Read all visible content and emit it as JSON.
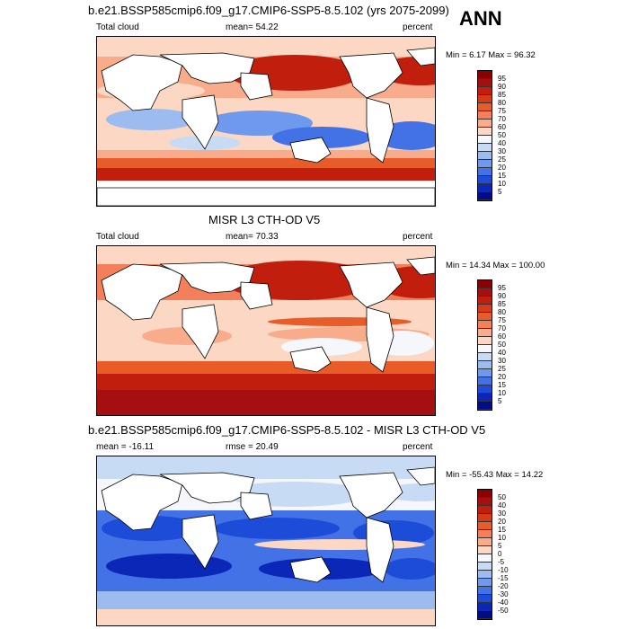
{
  "season": "ANN",
  "panels": [
    {
      "title": "b.e21.BSSP585cmip6.f09_g17.CMIP6-SSP5-8.5.102 (yrs 2075-2099)",
      "left_label": "Total cloud",
      "center_label": "mean=  54.22",
      "right_label": "percent",
      "minmax": "Min =   6.17 Max =  96.32",
      "colorbar": {
        "labels": [
          "95",
          "90",
          "85",
          "80",
          "75",
          "70",
          "60",
          "50",
          "40",
          "30",
          "25",
          "20",
          "15",
          "10",
          "5"
        ],
        "colors": [
          "#8b0000",
          "#a50f0f",
          "#c21e0e",
          "#d63a16",
          "#e85c2a",
          "#f3805a",
          "#f9ac8c",
          "#fcd8c4",
          "#f5f7fa",
          "#c8dbf5",
          "#9cbcf0",
          "#6f99ec",
          "#4272e6",
          "#1c4cd8",
          "#0a27b8",
          "#000c88"
        ]
      }
    },
    {
      "title": "MISR L3 CTH-OD V5",
      "left_label": "Total cloud",
      "center_label": "mean=  70.33",
      "right_label": "percent",
      "minmax": "Min =  14.34 Max = 100.00",
      "colorbar": {
        "labels": [
          "95",
          "90",
          "85",
          "80",
          "75",
          "70",
          "60",
          "50",
          "40",
          "30",
          "25",
          "20",
          "15",
          "10",
          "5"
        ],
        "colors": [
          "#8b0000",
          "#a50f0f",
          "#c21e0e",
          "#d63a16",
          "#e85c2a",
          "#f3805a",
          "#f9ac8c",
          "#fcd8c4",
          "#f5f7fa",
          "#c8dbf5",
          "#9cbcf0",
          "#6f99ec",
          "#4272e6",
          "#1c4cd8",
          "#0a27b8",
          "#000c88"
        ]
      }
    },
    {
      "title": "b.e21.BSSP585cmip6.f09_g17.CMIP6-SSP5-8.5.102 - MISR L3 CTH-OD V5",
      "left_label": "mean = -16.11",
      "center_label": "rmse =  20.49",
      "right_label": "percent",
      "minmax": "Min = -55.43 Max =  14.22",
      "colorbar": {
        "labels": [
          "50",
          "40",
          "30",
          "20",
          "15",
          "10",
          "5",
          "0",
          "-5",
          "-10",
          "-15",
          "-20",
          "-30",
          "-40",
          "-50"
        ],
        "colors": [
          "#8b0000",
          "#a50f0f",
          "#c21e0e",
          "#d63a16",
          "#e85c2a",
          "#f3805a",
          "#f9ac8c",
          "#fcd8c4",
          "#f5f7fa",
          "#c8dbf5",
          "#9cbcf0",
          "#6f99ec",
          "#4272e6",
          "#1c4cd8",
          "#0a27b8",
          "#000c88"
        ]
      }
    }
  ]
}
